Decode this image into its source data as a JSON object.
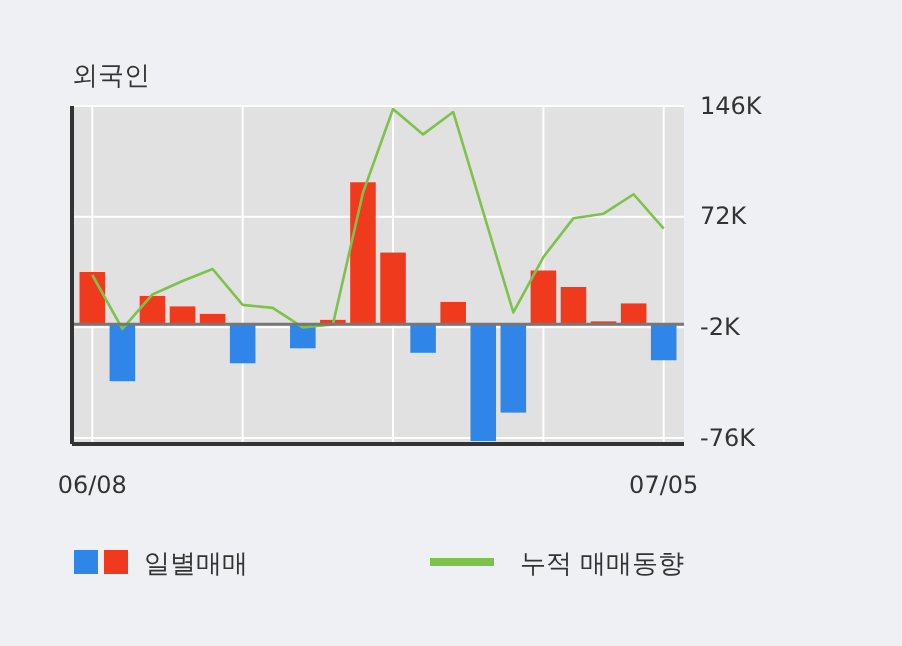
{
  "chart_data": {
    "type": "bar",
    "title": "외국인",
    "categories": [
      "06/08",
      null,
      null,
      null,
      null,
      null,
      null,
      null,
      null,
      null,
      null,
      null,
      null,
      null,
      null,
      null,
      null,
      null,
      null,
      "07/05"
    ],
    "series": [
      {
        "name": "일별매매",
        "colors": [
          "#f03a1e",
          "#2f86e8",
          "#f03a1e",
          "#f03a1e",
          "#f03a1e",
          "#2f86e8",
          "#f03a1e",
          "#2f86e8",
          "#f03a1e",
          "#f03a1e",
          "#f03a1e",
          "#2f86e8",
          "#f03a1e",
          "#2f86e8",
          "#2f86e8",
          "#f03a1e",
          "#f03a1e",
          "#f03a1e",
          "#f03a1e",
          "#2f86e8"
        ],
        "values": [
          35,
          -38,
          19,
          12,
          7,
          -26,
          0,
          -16,
          3,
          95,
          48,
          -19,
          15,
          -78,
          -59,
          36,
          25,
          2,
          14,
          -24
        ]
      },
      {
        "type": "line",
        "name": "누적 매매동향",
        "color": "#7dc24a",
        "values": [
          33,
          -3,
          20,
          29,
          37,
          13,
          11,
          -2,
          0,
          88,
          144,
          127,
          142,
          75,
          8,
          45,
          71,
          74,
          87,
          64
        ]
      }
    ],
    "ylim": [
      -80,
      146
    ],
    "yticks": [
      {
        "value": 146,
        "label": "146K"
      },
      {
        "value": 72,
        "label": "72K"
      },
      {
        "value": -2,
        "label": "-2K"
      },
      {
        "value": -76,
        "label": "-76K"
      }
    ],
    "grid": true,
    "legend": "bottom",
    "tick_labels": "y"
  }
}
